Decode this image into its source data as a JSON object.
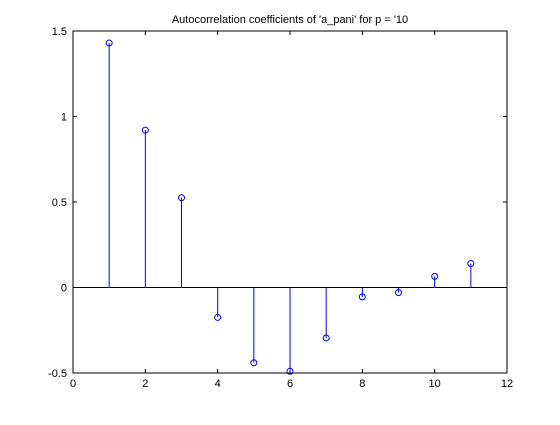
{
  "chart_data": {
    "type": "stem",
    "title": "Autocorrelation coefficients of 'a_pani' for p = '10",
    "xlabel": "",
    "ylabel": "",
    "xlim": [
      0,
      12
    ],
    "ylim": [
      -0.5,
      1.5
    ],
    "x_ticks": [
      0,
      2,
      4,
      6,
      8,
      10,
      12
    ],
    "y_ticks": [
      -0.5,
      0,
      0.5,
      1,
      1.5
    ],
    "grid": false,
    "baseline": 0,
    "x": [
      1,
      2,
      3,
      4,
      5,
      6,
      7,
      8,
      9,
      10,
      11
    ],
    "values": [
      1.43,
      0.92,
      0.525,
      -0.175,
      -0.44,
      -0.49,
      -0.295,
      -0.055,
      -0.03,
      0.065,
      0.14
    ],
    "colors": {
      "stem": "#0000ff",
      "baseline": "#000000",
      "axes": "#000000"
    },
    "marker": "circle"
  }
}
